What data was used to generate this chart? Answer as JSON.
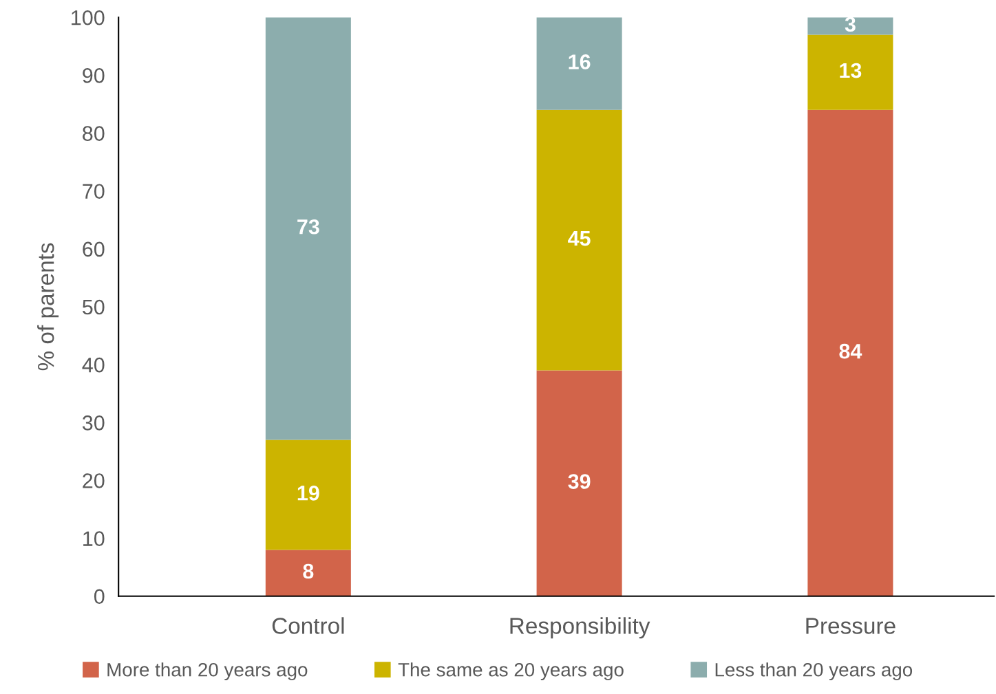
{
  "chart_data": {
    "type": "bar",
    "stacked": true,
    "ylabel": "% of parents",
    "categories": [
      "Control",
      "Responsibility",
      "Pressure"
    ],
    "series": [
      {
        "name": "More than 20 years ago",
        "color": "#d2644a",
        "values": [
          8,
          39,
          84
        ]
      },
      {
        "name": "The same as 20 years ago",
        "color": "#ccb400",
        "values": [
          19,
          45,
          13
        ]
      },
      {
        "name": "Less than 20 years ago",
        "color": "#8cadad",
        "values": [
          73,
          16,
          3
        ]
      }
    ],
    "ylim": [
      0,
      100
    ],
    "yticks": [
      0,
      10,
      20,
      30,
      40,
      50,
      60,
      70,
      80,
      90,
      100
    ],
    "data_labels": true,
    "grid": false,
    "legend": "bottom"
  }
}
